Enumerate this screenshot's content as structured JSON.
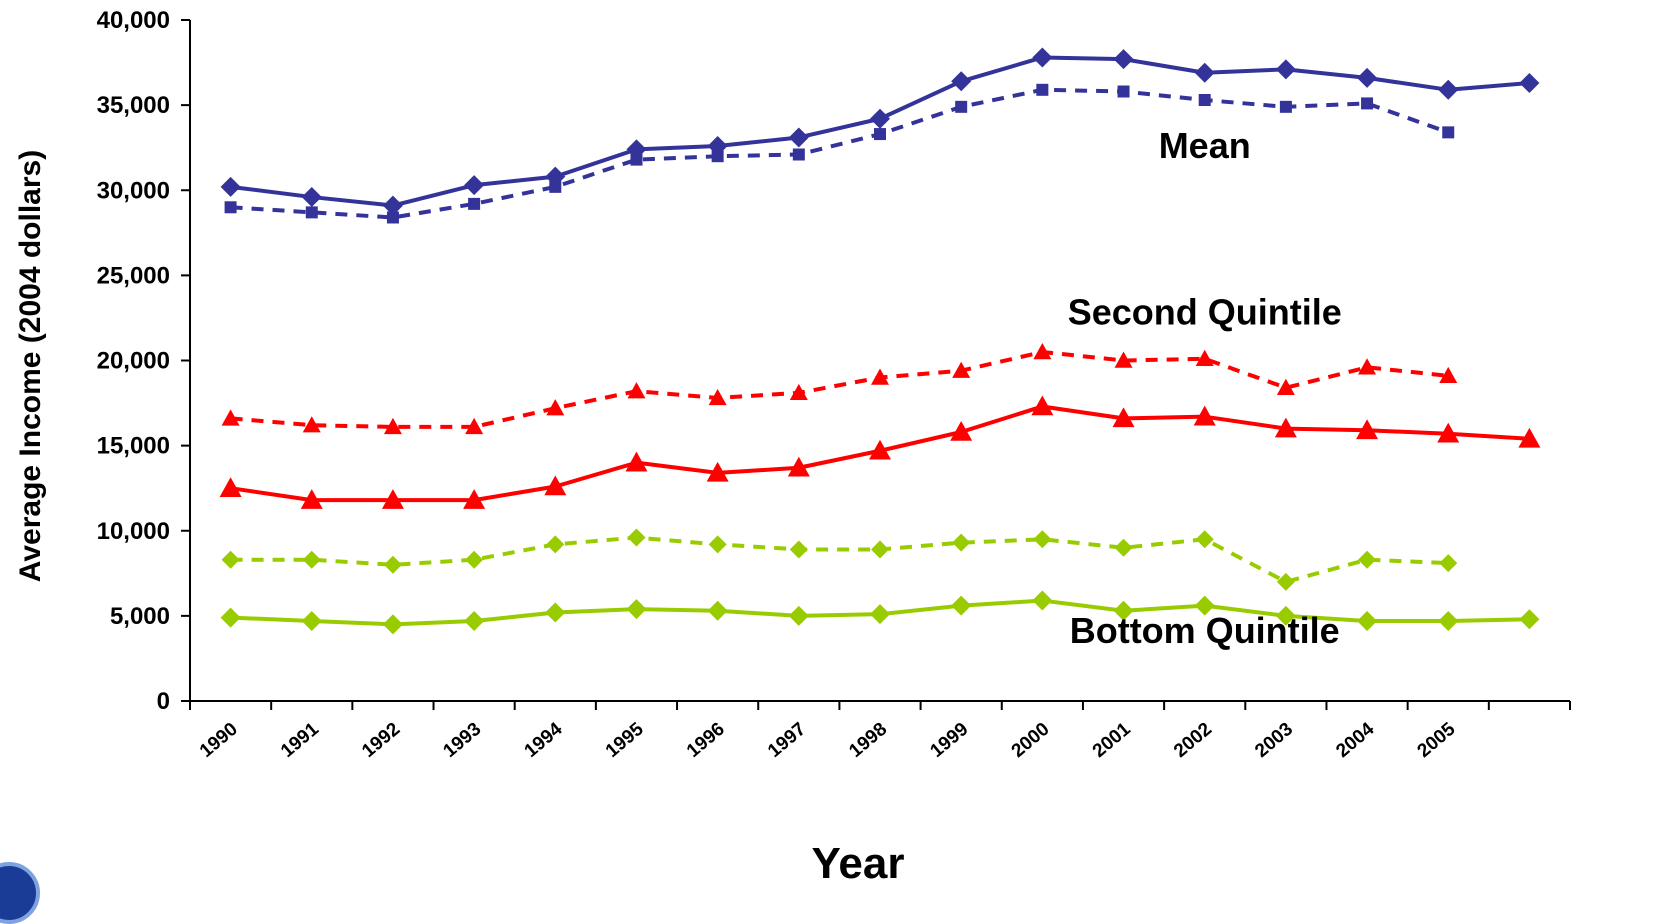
{
  "chart_data": {
    "type": "line",
    "title": "",
    "xlabel": "Year",
    "ylabel": "Average Income (2004 dollars)",
    "ylim": [
      0,
      40000
    ],
    "yticks": [
      0,
      5000,
      10000,
      15000,
      20000,
      25000,
      30000,
      35000,
      40000
    ],
    "ytick_labels": [
      "0",
      "5,000",
      "10,000",
      "15,000",
      "20,000",
      "25,000",
      "30,000",
      "35,000",
      "40,000"
    ],
    "categories": [
      "1990",
      "1991",
      "1992",
      "1993",
      "1994",
      "1995",
      "1996",
      "1997",
      "1998",
      "1999",
      "2000",
      "2001",
      "2002",
      "2003",
      "2004",
      "2005",
      ""
    ],
    "grid": false,
    "legend": "none",
    "series": [
      {
        "style": "solid",
        "color": "#333399",
        "marker": "diamond",
        "values": [
          30200,
          29600,
          29100,
          30300,
          30800,
          32400,
          32600,
          33100,
          34200,
          36400,
          37800,
          37700,
          36900,
          37100,
          36600,
          35900,
          36300
        ]
      },
      {
        "style": "dashed",
        "color": "#333399",
        "marker": "square",
        "values": [
          29000,
          28700,
          28400,
          29200,
          30200,
          31800,
          32000,
          32100,
          33300,
          34900,
          35900,
          35800,
          35300,
          34900,
          35100,
          33400,
          null
        ]
      },
      {
        "style": "solid",
        "color": "#ff0000",
        "marker": "triangle",
        "values": [
          12500,
          11800,
          11800,
          11800,
          12600,
          14000,
          13400,
          13700,
          14700,
          15800,
          17300,
          16600,
          16700,
          16000,
          15900,
          15700,
          15400
        ]
      },
      {
        "style": "dashed",
        "color": "#ff0000",
        "marker": "triangle",
        "values": [
          16600,
          16200,
          16100,
          16100,
          17200,
          18200,
          17800,
          18100,
          19000,
          19400,
          20500,
          20000,
          20100,
          18400,
          19600,
          19100,
          null
        ]
      },
      {
        "style": "solid",
        "color": "#99cc00",
        "marker": "diamond",
        "values": [
          4900,
          4700,
          4500,
          4700,
          5200,
          5400,
          5300,
          5000,
          5100,
          5600,
          5900,
          5300,
          5600,
          5000,
          4700,
          4700,
          4800
        ]
      },
      {
        "style": "dashed",
        "color": "#99cc00",
        "marker": "diamond",
        "values": [
          8300,
          8300,
          8000,
          8300,
          9200,
          9600,
          9200,
          8900,
          8900,
          9300,
          9500,
          9000,
          9500,
          7000,
          8300,
          8100,
          null
        ]
      }
    ],
    "annotations": [
      {
        "text": "Mean",
        "x": "2002",
        "y": 31900
      },
      {
        "text": "Second Quintile",
        "x": "2002",
        "y": 22100
      },
      {
        "text": "Bottom Quintile",
        "x": "2002",
        "y": 3400
      }
    ]
  }
}
